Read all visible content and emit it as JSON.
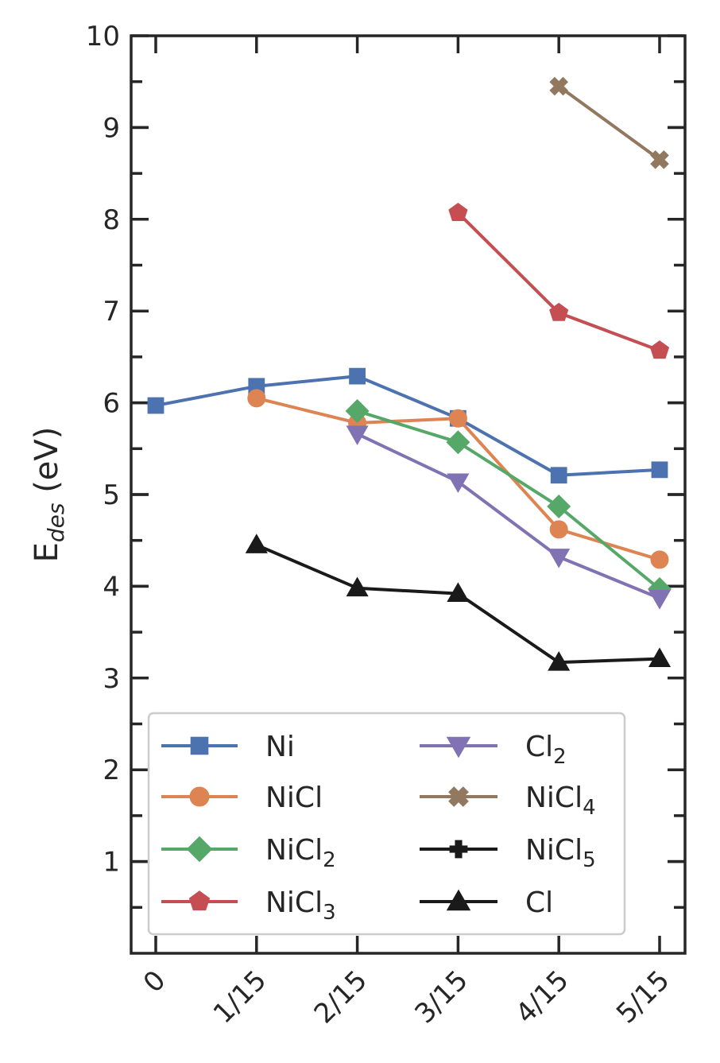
{
  "chart_data": {
    "type": "line",
    "title": "",
    "xlabel": "",
    "ylabel": "E",
    "ylabel_subscript": "des",
    "ylabel_unit": "(eV)",
    "categories": [
      "0",
      "1/15",
      "2/15",
      "3/15",
      "4/15",
      "5/15"
    ],
    "ylim": [
      0,
      10
    ],
    "yticks": [
      "1",
      "2",
      "3",
      "4",
      "5",
      "6",
      "7",
      "8",
      "9",
      "10"
    ],
    "grid": false,
    "legend_position": "lower-left",
    "legend_columns": 2,
    "series": [
      {
        "name": "Ni",
        "name_base": "Ni",
        "name_sub": "",
        "color": "#4c72b0",
        "marker": "square",
        "values": [
          5.97,
          6.18,
          6.29,
          5.83,
          5.21,
          5.27
        ]
      },
      {
        "name": "NiCl",
        "name_base": "NiCl",
        "name_sub": "",
        "color": "#dd8452",
        "marker": "circle",
        "values": [
          null,
          6.05,
          5.78,
          5.83,
          4.62,
          4.29
        ]
      },
      {
        "name": "NiCl2",
        "name_base": "NiCl",
        "name_sub": "2",
        "color": "#55a868",
        "marker": "diamond",
        "values": [
          null,
          null,
          5.91,
          5.57,
          4.87,
          3.97
        ]
      },
      {
        "name": "NiCl3",
        "name_base": "NiCl",
        "name_sub": "3",
        "color": "#c44e52",
        "marker": "pentagon",
        "values": [
          null,
          null,
          null,
          8.07,
          6.98,
          6.57
        ]
      },
      {
        "name": "Cl2",
        "name_base": "Cl",
        "name_sub": "2",
        "color": "#8172b3",
        "marker": "triangle-down",
        "values": [
          null,
          null,
          5.66,
          5.14,
          4.32,
          3.87
        ]
      },
      {
        "name": "NiCl4",
        "name_base": "NiCl",
        "name_sub": "4",
        "color": "#937860",
        "marker": "x-filled",
        "values": [
          null,
          null,
          null,
          null,
          9.45,
          8.65
        ]
      },
      {
        "name": "NiCl5",
        "name_base": "NiCl",
        "name_sub": "5",
        "color": "#1a1a1a",
        "marker": "plus-filled",
        "values": [
          null,
          null,
          null,
          null,
          null,
          null
        ]
      },
      {
        "name": "Cl",
        "name_base": "Cl",
        "name_sub": "",
        "color": "#1a1a1a",
        "marker": "triangle-up",
        "values": [
          null,
          4.45,
          3.98,
          3.92,
          3.17,
          3.21
        ]
      }
    ]
  }
}
